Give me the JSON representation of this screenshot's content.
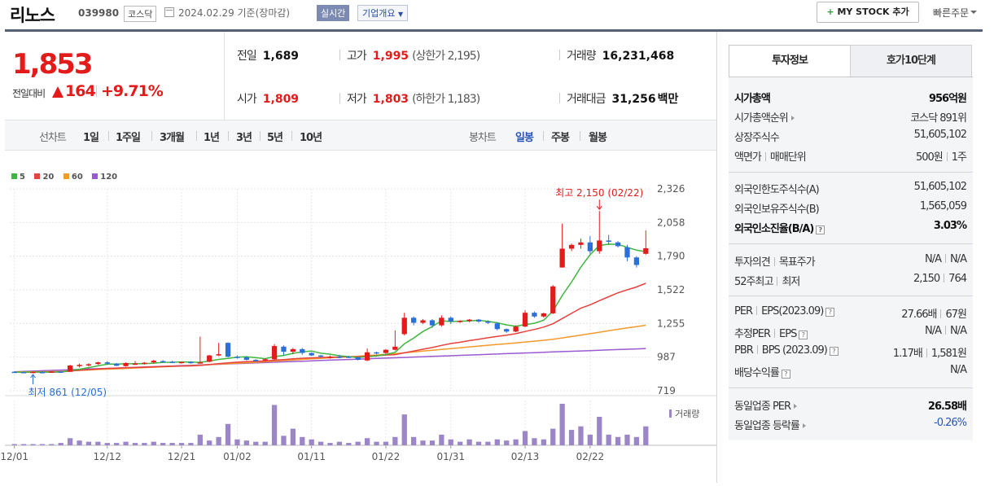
{
  "header": {
    "name": "리노스",
    "code": "039980",
    "market": "코스닥",
    "date": "2024.02.29 기준(장마감)",
    "realtime": "실시간",
    "company_overview": "기업개요",
    "my_stock": "MY STOCK 추가",
    "my_stock_plus": "+",
    "quick_order": "빠른주문"
  },
  "price": {
    "current": "1,853",
    "change_label": "전일대비",
    "change": "164",
    "change_pct": "+9.71%"
  },
  "stats": {
    "prev_label": "전일",
    "prev": "1,689",
    "high_label": "고가",
    "high": "1,995",
    "upper_limit": "(상한가 2,195)",
    "volume_label": "거래량",
    "volume": "16,231,468",
    "open_label": "시가",
    "open": "1,809",
    "low_label": "저가",
    "low": "1,803",
    "lower_limit": "(하한가 1,183)",
    "amount_label": "거래대금",
    "amount": "31,256",
    "amount_unit": "백만"
  },
  "period_bar": {
    "line_label": "선차트",
    "line_items": [
      "1일",
      "1주일",
      "3개월",
      "1년",
      "3년",
      "5년",
      "10년"
    ],
    "candle_label": "봉차트",
    "candle_items": [
      "일봉",
      "주봉",
      "월봉"
    ],
    "candle_selected": "일봉"
  },
  "chart_data": {
    "type": "candlestick",
    "legend": [
      {
        "name": "5",
        "color": "#3fb63f"
      },
      {
        "name": "20",
        "color": "#e8413e"
      },
      {
        "name": "60",
        "color": "#f39a2c"
      },
      {
        "name": "120",
        "color": "#9b59d0"
      }
    ],
    "y_ticks": [
      2326,
      2058,
      1790,
      1522,
      1255,
      987,
      719
    ],
    "ylim": [
      719,
      2326
    ],
    "x_ticks": [
      "12/01",
      "12/12",
      "12/21",
      "01/02",
      "01/11",
      "01/22",
      "01/31",
      "02/13",
      "02/22"
    ],
    "high_annotation": "최고 2,150 (02/22)",
    "low_annotation": "최저 861 (12/05)",
    "volume_label": "거래량",
    "colors": {
      "up": "#e41b1b",
      "down": "#2b6fd8",
      "volume": "#9b86c7"
    },
    "candles": [
      {
        "o": 870,
        "h": 875,
        "l": 866,
        "c": 868,
        "vol": 1
      },
      {
        "o": 868,
        "h": 872,
        "l": 864,
        "c": 866,
        "vol": 1
      },
      {
        "o": 866,
        "h": 870,
        "l": 861,
        "c": 869,
        "vol": 1
      },
      {
        "o": 868,
        "h": 874,
        "l": 864,
        "c": 866,
        "vol": 1
      },
      {
        "o": 866,
        "h": 875,
        "l": 862,
        "c": 872,
        "vol": 1
      },
      {
        "o": 872,
        "h": 876,
        "l": 866,
        "c": 868,
        "vol": 2
      },
      {
        "o": 870,
        "h": 925,
        "l": 868,
        "c": 920,
        "vol": 6
      },
      {
        "o": 915,
        "h": 935,
        "l": 905,
        "c": 925,
        "vol": 4
      },
      {
        "o": 922,
        "h": 938,
        "l": 912,
        "c": 930,
        "vol": 3
      },
      {
        "o": 932,
        "h": 950,
        "l": 925,
        "c": 945,
        "vol": 3
      },
      {
        "o": 945,
        "h": 955,
        "l": 925,
        "c": 935,
        "vol": 2
      },
      {
        "o": 935,
        "h": 940,
        "l": 915,
        "c": 918,
        "vol": 2
      },
      {
        "o": 915,
        "h": 945,
        "l": 910,
        "c": 940,
        "vol": 3
      },
      {
        "o": 935,
        "h": 955,
        "l": 925,
        "c": 935,
        "vol": 2
      },
      {
        "o": 935,
        "h": 948,
        "l": 928,
        "c": 942,
        "vol": 2
      },
      {
        "o": 945,
        "h": 965,
        "l": 935,
        "c": 958,
        "vol": 3
      },
      {
        "o": 955,
        "h": 962,
        "l": 942,
        "c": 950,
        "vol": 2
      },
      {
        "o": 950,
        "h": 958,
        "l": 940,
        "c": 945,
        "vol": 2
      },
      {
        "o": 942,
        "h": 950,
        "l": 935,
        "c": 948,
        "vol": 2
      },
      {
        "o": 948,
        "h": 955,
        "l": 935,
        "c": 938,
        "vol": 2
      },
      {
        "o": 938,
        "h": 1150,
        "l": 935,
        "c": 945,
        "vol": 9
      },
      {
        "o": 950,
        "h": 1005,
        "l": 945,
        "c": 1000,
        "vol": 4
      },
      {
        "o": 1000,
        "h": 1100,
        "l": 995,
        "c": 1010,
        "vol": 7
      },
      {
        "o": 1100,
        "h": 1105,
        "l": 985,
        "c": 990,
        "vol": 18
      },
      {
        "o": 990,
        "h": 1000,
        "l": 975,
        "c": 985,
        "vol": 5
      },
      {
        "o": 985,
        "h": 995,
        "l": 960,
        "c": 965,
        "vol": 4
      },
      {
        "o": 965,
        "h": 970,
        "l": 950,
        "c": 960,
        "vol": 3
      },
      {
        "o": 960,
        "h": 975,
        "l": 955,
        "c": 970,
        "vol": 3
      },
      {
        "o": 970,
        "h": 1090,
        "l": 965,
        "c": 1075,
        "vol": 34
      },
      {
        "o": 1070,
        "h": 1080,
        "l": 1000,
        "c": 1030,
        "vol": 8
      },
      {
        "o": 1030,
        "h": 1060,
        "l": 1010,
        "c": 1050,
        "vol": 14
      },
      {
        "o": 1050,
        "h": 1060,
        "l": 1005,
        "c": 1020,
        "vol": 7
      },
      {
        "o": 1020,
        "h": 1025,
        "l": 995,
        "c": 1000,
        "vol": 5
      },
      {
        "o": 1000,
        "h": 1005,
        "l": 985,
        "c": 990,
        "vol": 3
      },
      {
        "o": 990,
        "h": 1000,
        "l": 975,
        "c": 990,
        "vol": 2
      },
      {
        "o": 990,
        "h": 1005,
        "l": 978,
        "c": 988,
        "vol": 3
      },
      {
        "o": 990,
        "h": 998,
        "l": 980,
        "c": 985,
        "vol": 2
      },
      {
        "o": 985,
        "h": 990,
        "l": 960,
        "c": 965,
        "vol": 3
      },
      {
        "o": 960,
        "h": 1055,
        "l": 955,
        "c": 1025,
        "vol": 6
      },
      {
        "o": 1025,
        "h": 1030,
        "l": 1010,
        "c": 1020,
        "vol": 3
      },
      {
        "o": 1020,
        "h": 1050,
        "l": 1015,
        "c": 1045,
        "vol": 3
      },
      {
        "o": 1045,
        "h": 1200,
        "l": 1040,
        "c": 1070,
        "vol": 7
      },
      {
        "o": 1170,
        "h": 1340,
        "l": 1160,
        "c": 1300,
        "vol": 26
      },
      {
        "o": 1300,
        "h": 1310,
        "l": 1240,
        "c": 1260,
        "vol": 7
      },
      {
        "o": 1260,
        "h": 1290,
        "l": 1250,
        "c": 1280,
        "vol": 4
      },
      {
        "o": 1280,
        "h": 1290,
        "l": 1220,
        "c": 1240,
        "vol": 4
      },
      {
        "o": 1240,
        "h": 1320,
        "l": 1230,
        "c": 1300,
        "vol": 9
      },
      {
        "o": 1300,
        "h": 1310,
        "l": 1250,
        "c": 1270,
        "vol": 5
      },
      {
        "o": 1270,
        "h": 1280,
        "l": 1260,
        "c": 1275,
        "vol": 3
      },
      {
        "o": 1275,
        "h": 1290,
        "l": 1265,
        "c": 1285,
        "vol": 5
      },
      {
        "o": 1285,
        "h": 1290,
        "l": 1260,
        "c": 1270,
        "vol": 3
      },
      {
        "o": 1270,
        "h": 1280,
        "l": 1250,
        "c": 1260,
        "vol": 3
      },
      {
        "o": 1255,
        "h": 1265,
        "l": 1200,
        "c": 1210,
        "vol": 5
      },
      {
        "o": 1210,
        "h": 1215,
        "l": 1180,
        "c": 1190,
        "vol": 4
      },
      {
        "o": 1190,
        "h": 1240,
        "l": 1185,
        "c": 1230,
        "vol": 5
      },
      {
        "o": 1230,
        "h": 1360,
        "l": 1225,
        "c": 1340,
        "vol": 12
      },
      {
        "o": 1340,
        "h": 1350,
        "l": 1300,
        "c": 1310,
        "vol": 6
      },
      {
        "o": 1310,
        "h": 1340,
        "l": 1300,
        "c": 1335,
        "vol": 5
      },
      {
        "o": 1335,
        "h": 1560,
        "l": 1330,
        "c": 1550,
        "vol": 14
      },
      {
        "o": 1700,
        "h": 2050,
        "l": 1700,
        "c": 1850,
        "vol": 35
      },
      {
        "o": 1850,
        "h": 1890,
        "l": 1830,
        "c": 1880,
        "vol": 13
      },
      {
        "o": 1880,
        "h": 1930,
        "l": 1850,
        "c": 1900,
        "vol": 16
      },
      {
        "o": 1900,
        "h": 1950,
        "l": 1810,
        "c": 1830,
        "vol": 9
      },
      {
        "o": 1830,
        "h": 2150,
        "l": 1810,
        "c": 1915,
        "vol": 24
      },
      {
        "o": 1915,
        "h": 1960,
        "l": 1880,
        "c": 1905,
        "vol": 9
      },
      {
        "o": 1900,
        "h": 1910,
        "l": 1860,
        "c": 1870,
        "vol": 7
      },
      {
        "o": 1860,
        "h": 1880,
        "l": 1750,
        "c": 1780,
        "vol": 9
      },
      {
        "o": 1780,
        "h": 1790,
        "l": 1700,
        "c": 1720,
        "vol": 7
      },
      {
        "o": 1809,
        "h": 1995,
        "l": 1803,
        "c": 1853,
        "vol": 16
      }
    ],
    "ma5_last": 1820,
    "ma20_last": 1570,
    "ma60_last": 1255,
    "ma120_last": 1055
  },
  "invest": {
    "tab_info": "투자정보",
    "tab_orderbook": "호가10단계",
    "rows": {
      "mktcap_label": "시가총액",
      "mktcap": "956억원",
      "rank_label": "시가총액순위",
      "rank": "코스닥 891위",
      "shares_label": "상장주식수",
      "shares": "51,605,102",
      "par_label": "액면가",
      "unit_label": "매매단위",
      "par": "500원",
      "unit": "1주",
      "foreign_limit_label": "외국인한도주식수(A)",
      "foreign_limit": "51,605,102",
      "foreign_hold_label": "외국인보유주식수(B)",
      "foreign_hold": "1,565,059",
      "foreign_ratio_label": "외국인소진율(B/A)",
      "foreign_ratio": "3.03%",
      "opinion_label": "투자의견",
      "target_label": "목표주가",
      "opinion": "N/A",
      "target": "N/A",
      "w52_label": "52주최고",
      "w52_low_label": "최저",
      "w52_high": "2,150",
      "w52_low": "764",
      "per_label": "PER",
      "eps_label": "EPS(2023.09)",
      "per": "27.66배",
      "eps": "67원",
      "eper_label": "추정PER",
      "eeps_label": "EPS",
      "eper": "N/A",
      "eeps": "N/A",
      "pbr_label": "PBR",
      "bps_label": "BPS (2023.09)",
      "pbr": "1.17배",
      "bps": "1,581원",
      "div_label": "배당수익률",
      "div": "N/A",
      "ind_per_label": "동일업종 PER",
      "ind_per": "26.58배",
      "ind_chg_label": "동일업종 등락률",
      "ind_chg": "-0.26%"
    },
    "qmark": "?"
  }
}
